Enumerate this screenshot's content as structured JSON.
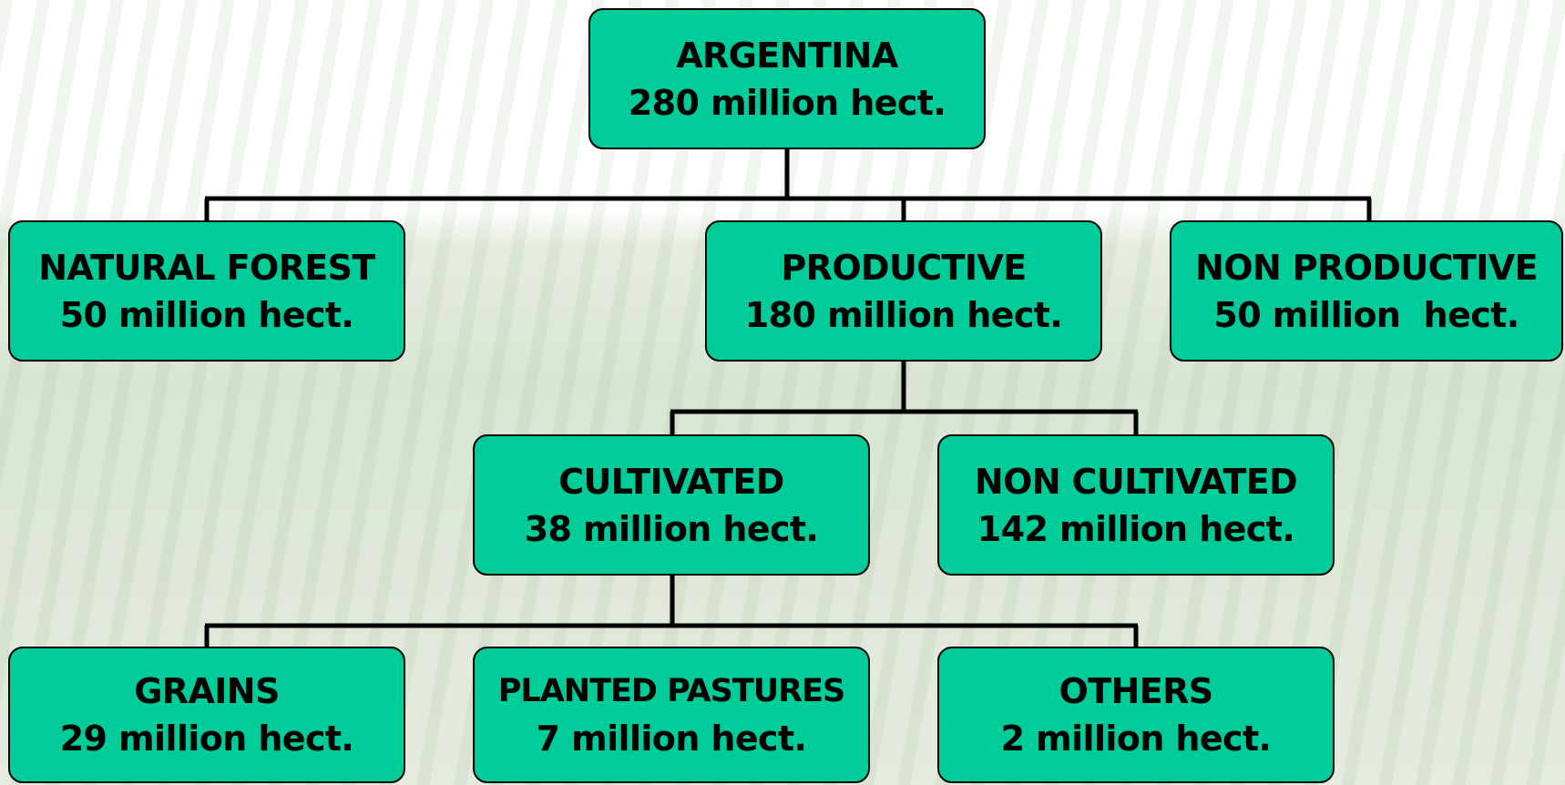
{
  "nodes": [
    {
      "label": "ARGENTINA",
      "value": "280 million hect."
    },
    {
      "label": "NATURAL FOREST",
      "value": "50 million hect."
    },
    {
      "label": "PRODUCTIVE",
      "value": "180 million hect."
    },
    {
      "label": "NON PRODUCTIVE",
      "value": "50 million  hect."
    },
    {
      "label": "CULTIVATED",
      "value": "38 million hect."
    },
    {
      "label": "NON CULTIVATED",
      "value": "142 million hect."
    },
    {
      "label": "GRAINS",
      "value": "29 million hect."
    },
    {
      "label": "PLANTED PASTURES",
      "value": "7 million hect."
    },
    {
      "label": "OTHERS",
      "value": "2 million hect."
    }
  ]
}
